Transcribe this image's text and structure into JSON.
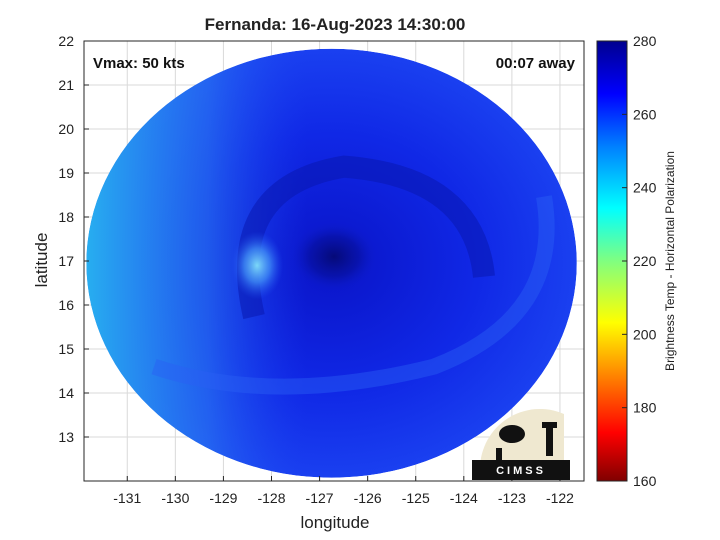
{
  "chart_data": {
    "type": "heatmap",
    "title": "Fernanda: 16-Aug-2023 14:30:00",
    "xlabel": "longitude",
    "ylabel": "latitude",
    "xlim": [
      -131.9,
      -121.5
    ],
    "ylim": [
      12.0,
      22.0
    ],
    "x_ticks": [
      -131,
      -130,
      -129,
      -128,
      -127,
      -126,
      -125,
      -124,
      -123,
      -122
    ],
    "y_ticks": [
      13,
      14,
      15,
      16,
      17,
      18,
      19,
      20,
      21,
      22
    ],
    "grid": true,
    "annotations": {
      "vmax": "Vmax: 50 kts",
      "time_offset": "00:07 away"
    },
    "storm_center": {
      "lon": -126.7,
      "lat": 17.1
    },
    "colorbar": {
      "label": "Brightness Temp - Horizontal Polarization",
      "range": [
        160,
        280
      ],
      "ticks": [
        160,
        180,
        200,
        220,
        240,
        260,
        280
      ],
      "colormap": "jet"
    },
    "colormap_stops": [
      "#800000",
      "#ff0000",
      "#ff8000",
      "#ffff00",
      "#80ff80",
      "#00ffff",
      "#0080ff",
      "#0000ff",
      "#00008f"
    ]
  },
  "logo": {
    "text": "CIMSS"
  }
}
